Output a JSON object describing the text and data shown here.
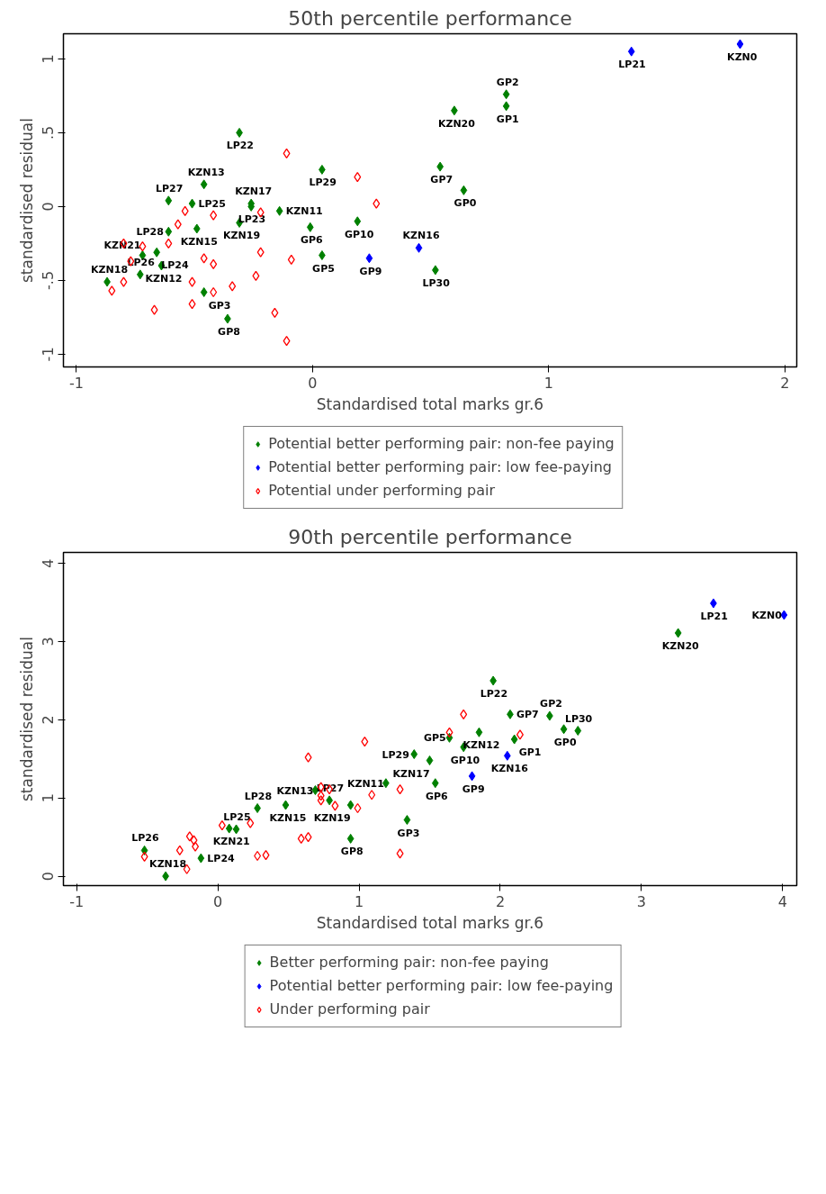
{
  "chart_data": [
    {
      "type": "scatter",
      "title": "50th percentile performance",
      "xlabel": "Standardised total marks gr.6",
      "ylabel": "standardised residual",
      "xlim": [
        -1.055,
        2.05
      ],
      "ylim": [
        -1.086,
        1.17
      ],
      "xticks": [
        -1,
        0,
        1,
        2
      ],
      "yticks": [
        {
          "value": -1,
          "label": "-1"
        },
        {
          "value": -0.5,
          "label": "-.5"
        },
        {
          "value": 0,
          "label": "0"
        },
        {
          "value": 0.5,
          "label": ".5"
        },
        {
          "value": 1,
          "label": "1"
        }
      ],
      "grid": false,
      "legend": "bottom",
      "marker": "diamond",
      "series": [
        {
          "name": "Potential better performing pair: non-fee paying",
          "color": "#008000",
          "x": [
            -0.31,
            0.04,
            -0.46,
            -0.61,
            -0.51,
            -0.26,
            -0.26,
            -0.14,
            -0.31,
            -0.49,
            -0.61,
            -0.01,
            0.19,
            0.04,
            -0.64,
            -0.87,
            -0.73,
            -0.72,
            -0.66,
            -0.46,
            -0.36,
            0.82,
            0.82,
            0.6,
            0.54,
            0.64,
            0.52
          ],
          "values": [
            0.5,
            0.25,
            0.15,
            0.04,
            0.02,
            0.02,
            0.0,
            -0.03,
            -0.11,
            -0.15,
            -0.17,
            -0.14,
            -0.1,
            -0.33,
            -0.4,
            -0.51,
            -0.46,
            -0.33,
            -0.31,
            -0.58,
            -0.76,
            0.76,
            0.68,
            0.65,
            0.27,
            0.11,
            -0.43
          ],
          "value_labels": [
            "LP22",
            "LP29",
            "KZN13",
            "LP27",
            "LP25",
            "KZN17",
            "LP23",
            "KZN11",
            "KZN19",
            "KZN15",
            "LP28",
            "GP6",
            "GP10",
            "GP5",
            "KZN12",
            "KZN18",
            "LP26",
            "KZN21",
            "LP24",
            "GP3",
            "GP8",
            "GP2",
            "GP1",
            "KZN20",
            "GP7",
            "GP0",
            "LP30"
          ]
        },
        {
          "name": "Potential better performing pair: low fee-paying",
          "color": "#0000ff",
          "x": [
            1.35,
            1.81,
            0.45,
            0.24
          ],
          "values": [
            1.05,
            1.1,
            -0.28,
            -0.35
          ],
          "value_labels": [
            "LP21",
            "KZN0",
            "KZN16",
            "GP9"
          ]
        },
        {
          "name": "Potential under performing pair",
          "color": "#ff0000",
          "x": [
            -0.11,
            0.19,
            0.27,
            -0.22,
            -0.42,
            -0.57,
            -0.54,
            -0.8,
            -0.72,
            -0.61,
            -0.22,
            -0.09,
            -0.46,
            -0.42,
            -0.77,
            -0.24,
            -0.34,
            -0.42,
            -0.51,
            -0.8,
            -0.85,
            -0.67,
            -0.51,
            -0.16,
            -0.11
          ],
          "values": [
            0.36,
            0.2,
            0.02,
            -0.04,
            -0.06,
            -0.12,
            -0.03,
            -0.25,
            -0.27,
            -0.25,
            -0.31,
            -0.36,
            -0.35,
            -0.39,
            -0.37,
            -0.47,
            -0.54,
            -0.58,
            -0.51,
            -0.51,
            -0.57,
            -0.7,
            -0.66,
            -0.72,
            -0.91
          ]
        }
      ]
    },
    {
      "type": "scatter",
      "title": "90th percentile performance",
      "xlabel": "Standardised total marks gr.6",
      "ylabel": "standardised residual",
      "xlim": [
        -1.094,
        4.1
      ],
      "ylim": [
        -0.12,
        4.14
      ],
      "xticks": [
        -1,
        0,
        1,
        2,
        3,
        4
      ],
      "yticks": [
        0,
        1,
        2,
        3,
        4
      ],
      "grid": false,
      "legend": "bottom",
      "marker": "diamond",
      "series": [
        {
          "name": "Better performing pair: non-fee paying",
          "color": "#008000",
          "x": [
            3.26,
            1.95,
            2.07,
            2.35,
            2.45,
            2.55,
            1.85,
            2.1,
            1.64,
            1.74,
            1.39,
            1.5,
            1.19,
            1.54,
            1.34,
            0.94,
            0.94,
            0.69,
            0.79,
            0.48,
            0.28,
            0.08,
            0.13,
            -0.12,
            -0.52,
            -0.37
          ],
          "values": [
            3.11,
            2.5,
            2.07,
            2.05,
            1.88,
            1.86,
            1.84,
            1.75,
            1.77,
            1.65,
            1.56,
            1.48,
            1.19,
            1.19,
            0.72,
            0.48,
            0.91,
            1.1,
            0.97,
            0.91,
            0.87,
            0.61,
            0.6,
            0.23,
            0.33,
            0.0
          ],
          "value_labels": [
            "KZN20",
            "LP22",
            "GP7",
            "GP2",
            "GP0",
            "LP30",
            "KZN12",
            "GP1",
            "GP5",
            "GP10",
            "LP29",
            "KZN17",
            "KZN11",
            "GP6",
            "GP3",
            "GP8",
            "KZN19",
            "KZN13",
            "LP27",
            "KZN15",
            "LP28",
            "KZN21",
            "LP25",
            "LP24",
            "LP26",
            "KZN18"
          ]
        },
        {
          "name": "Potential better performing pair: low fee-paying",
          "color": "#0000ff",
          "x": [
            3.51,
            4.01,
            2.05,
            1.8
          ],
          "values": [
            3.49,
            3.34,
            1.54,
            1.28
          ],
          "value_labels": [
            "LP21",
            "KZN0",
            "KZN16",
            "GP9"
          ]
        },
        {
          "name": "Under performing pair",
          "color": "#ff0000",
          "x": [
            1.74,
            1.64,
            2.14,
            1.04,
            0.64,
            0.73,
            0.79,
            0.73,
            0.73,
            1.09,
            1.29,
            0.99,
            0.83,
            0.03,
            0.23,
            -0.2,
            -0.17,
            -0.16,
            -0.27,
            -0.52,
            -0.22,
            0.28,
            0.34,
            0.59,
            0.64,
            1.29
          ],
          "values": [
            2.07,
            1.84,
            1.81,
            1.72,
            1.52,
            1.14,
            1.11,
            1.03,
            0.97,
            1.04,
            1.11,
            0.87,
            0.9,
            0.65,
            0.68,
            0.51,
            0.46,
            0.38,
            0.33,
            0.25,
            0.09,
            0.26,
            0.27,
            0.48,
            0.5,
            0.29
          ]
        }
      ]
    }
  ]
}
